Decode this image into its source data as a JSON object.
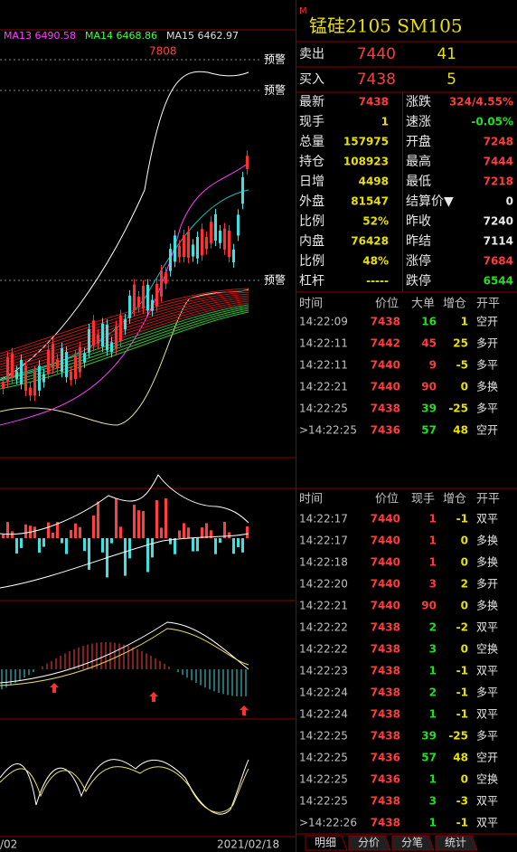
{
  "header": {
    "flag": "M",
    "title": "锰硅2105  SM105"
  },
  "orderbook": {
    "rows": [
      [
        "卖出",
        "7440",
        "41"
      ],
      [
        "买入",
        "7438",
        "5"
      ]
    ]
  },
  "quote": {
    "rows": [
      [
        "最新",
        "7438",
        "涨跌",
        "324/4.55%"
      ],
      [
        "现手",
        "1",
        "速涨",
        "-0.05%"
      ],
      [
        "总量",
        "157975",
        "开盘",
        "7248"
      ],
      [
        "持仓",
        "108923",
        "最高",
        "7444"
      ],
      [
        "日增",
        "4498",
        "最低",
        "7218"
      ],
      [
        "外盘",
        "81547",
        "结算价▼",
        "0"
      ],
      [
        "比例",
        "52%",
        "昨收",
        "7240"
      ],
      [
        "内盘",
        "76428",
        "昨结",
        "7114"
      ],
      [
        "比例",
        "48%",
        "涨停",
        "7684"
      ],
      [
        "杠杆",
        "-----",
        "跌停",
        "6544"
      ]
    ]
  },
  "ticks1": {
    "columns": [
      "时间",
      "价位",
      "大单",
      "增仓",
      "开平"
    ],
    "rows": [
      [
        "14:22:09",
        "7438",
        "16",
        "1",
        "空开"
      ],
      [
        "14:22:11",
        "7442",
        "45",
        "25",
        "多开"
      ],
      [
        "14:22:11",
        "7440",
        "9",
        "-5",
        "多平"
      ],
      [
        "14:22:21",
        "7440",
        "90",
        "0",
        "多换"
      ],
      [
        "14:22:25",
        "7438",
        "39",
        "-25",
        "多平"
      ],
      [
        ">14:22:25",
        "7436",
        "57",
        "48",
        "空开"
      ]
    ]
  },
  "ticks2": {
    "columns": [
      "时间",
      "价位",
      "现手",
      "增仓",
      "开平"
    ],
    "rows": [
      [
        "14:22:17",
        "7440",
        "1",
        "-1",
        "双平"
      ],
      [
        "14:22:17",
        "7440",
        "1",
        "0",
        "多换"
      ],
      [
        "14:22:18",
        "7440",
        "1",
        "0",
        "多换"
      ],
      [
        "14:22:20",
        "7440",
        "3",
        "2",
        "多开"
      ],
      [
        "14:22:21",
        "7440",
        "90",
        "0",
        "多换"
      ],
      [
        "14:22:22",
        "7438",
        "2",
        "-2",
        "双平"
      ],
      [
        "14:22:22",
        "7438",
        "3",
        "0",
        "空换"
      ],
      [
        "14:22:23",
        "7438",
        "1",
        "-1",
        "双平"
      ],
      [
        "14:22:24",
        "7438",
        "2",
        "-1",
        "多平"
      ],
      [
        "14:22:24",
        "7438",
        "1",
        "-1",
        "双平"
      ],
      [
        "14:22:25",
        "7438",
        "39",
        "-25",
        "多平"
      ],
      [
        "14:22:25",
        "7436",
        "57",
        "48",
        "空开"
      ],
      [
        "14:22:25",
        "7436",
        "1",
        "0",
        "空换"
      ],
      [
        "14:22:25",
        "7438",
        "3",
        "-3",
        "双平"
      ],
      [
        ">14:22:26",
        "7438",
        "1",
        "-1",
        "双平"
      ]
    ]
  },
  "tabs": [
    "明细",
    "分价",
    "分笔",
    "统计"
  ],
  "chart": {
    "ma": [
      "MA13 6490.58",
      "MA14 6468.86",
      "MA15 6462.97"
    ],
    "high_label": "7808",
    "alerts": [
      "预警",
      "预警",
      "预警"
    ],
    "dates": [
      "/02",
      "2021/02/18"
    ]
  }
}
